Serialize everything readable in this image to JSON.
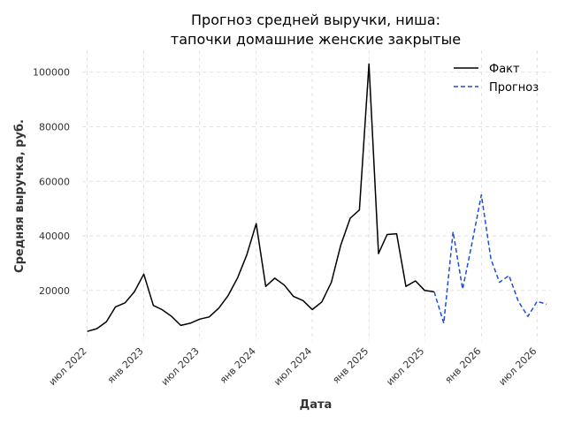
{
  "chart_data": {
    "type": "line",
    "title": [
      "Прогноз средней выручки, ниша:",
      "тапочки домашние женские закрытые"
    ],
    "xlabel": "Дата",
    "ylabel": "Средняя выручка, руб.",
    "ylim": [
      1500,
      108000
    ],
    "xlim": [
      "2022-06-15",
      "2026-08-15"
    ],
    "grid": true,
    "legend": "top-right",
    "x_ticks": [
      {
        "date": "2022-07-01",
        "label": "июл 2022"
      },
      {
        "date": "2023-01-01",
        "label": "янв 2023"
      },
      {
        "date": "2023-07-01",
        "label": "июл 2023"
      },
      {
        "date": "2024-01-01",
        "label": "янв 2024"
      },
      {
        "date": "2024-07-01",
        "label": "июл 2024"
      },
      {
        "date": "2025-01-01",
        "label": "янв 2025"
      },
      {
        "date": "2025-07-01",
        "label": "июл 2025"
      },
      {
        "date": "2026-01-01",
        "label": "янв 2026"
      },
      {
        "date": "2026-07-01",
        "label": "июл 2026"
      }
    ],
    "y_ticks": [
      20000,
      40000,
      60000,
      80000,
      100000
    ],
    "series": [
      {
        "name": "Факт",
        "color": "#000000",
        "style": "solid",
        "points": [
          [
            "2022-07-01",
            5000
          ],
          [
            "2022-08-01",
            6000
          ],
          [
            "2022-09-01",
            8500
          ],
          [
            "2022-10-01",
            14000
          ],
          [
            "2022-11-01",
            15500
          ],
          [
            "2022-12-01",
            19500
          ],
          [
            "2023-01-01",
            26000
          ],
          [
            "2023-02-01",
            14500
          ],
          [
            "2023-03-01",
            13000
          ],
          [
            "2023-04-01",
            10500
          ],
          [
            "2023-05-01",
            7200
          ],
          [
            "2023-06-01",
            8000
          ],
          [
            "2023-07-01",
            9500
          ],
          [
            "2023-08-01",
            10300
          ],
          [
            "2023-09-01",
            13500
          ],
          [
            "2023-10-01",
            18000
          ],
          [
            "2023-11-01",
            24500
          ],
          [
            "2023-12-01",
            33000
          ],
          [
            "2024-01-01",
            44500
          ],
          [
            "2024-02-01",
            21500
          ],
          [
            "2024-03-01",
            24500
          ],
          [
            "2024-04-01",
            22000
          ],
          [
            "2024-05-01",
            17800
          ],
          [
            "2024-06-01",
            16300
          ],
          [
            "2024-07-01",
            13000
          ],
          [
            "2024-08-01",
            15800
          ],
          [
            "2024-09-01",
            23000
          ],
          [
            "2024-10-01",
            36500
          ],
          [
            "2024-11-01",
            46500
          ],
          [
            "2024-12-01",
            49500
          ],
          [
            "2025-01-01",
            103000
          ],
          [
            "2025-02-01",
            33500
          ],
          [
            "2025-03-01",
            40500
          ],
          [
            "2025-04-01",
            40800
          ],
          [
            "2025-05-01",
            21500
          ],
          [
            "2025-06-01",
            23500
          ],
          [
            "2025-07-01",
            20000
          ],
          [
            "2025-08-01",
            19500
          ]
        ]
      },
      {
        "name": "Прогноз",
        "color": "#1a4fd6",
        "style": "dashed",
        "points": [
          [
            "2025-08-01",
            19500
          ],
          [
            "2025-09-01",
            8000
          ],
          [
            "2025-10-01",
            41500
          ],
          [
            "2025-11-01",
            20500
          ],
          [
            "2025-12-01",
            37000
          ],
          [
            "2026-01-01",
            55000
          ],
          [
            "2026-02-01",
            31500
          ],
          [
            "2026-03-01",
            23000
          ],
          [
            "2026-04-01",
            25500
          ],
          [
            "2026-05-01",
            16000
          ],
          [
            "2026-06-01",
            10500
          ],
          [
            "2026-07-01",
            16000
          ],
          [
            "2026-08-01",
            15000
          ]
        ]
      }
    ]
  }
}
